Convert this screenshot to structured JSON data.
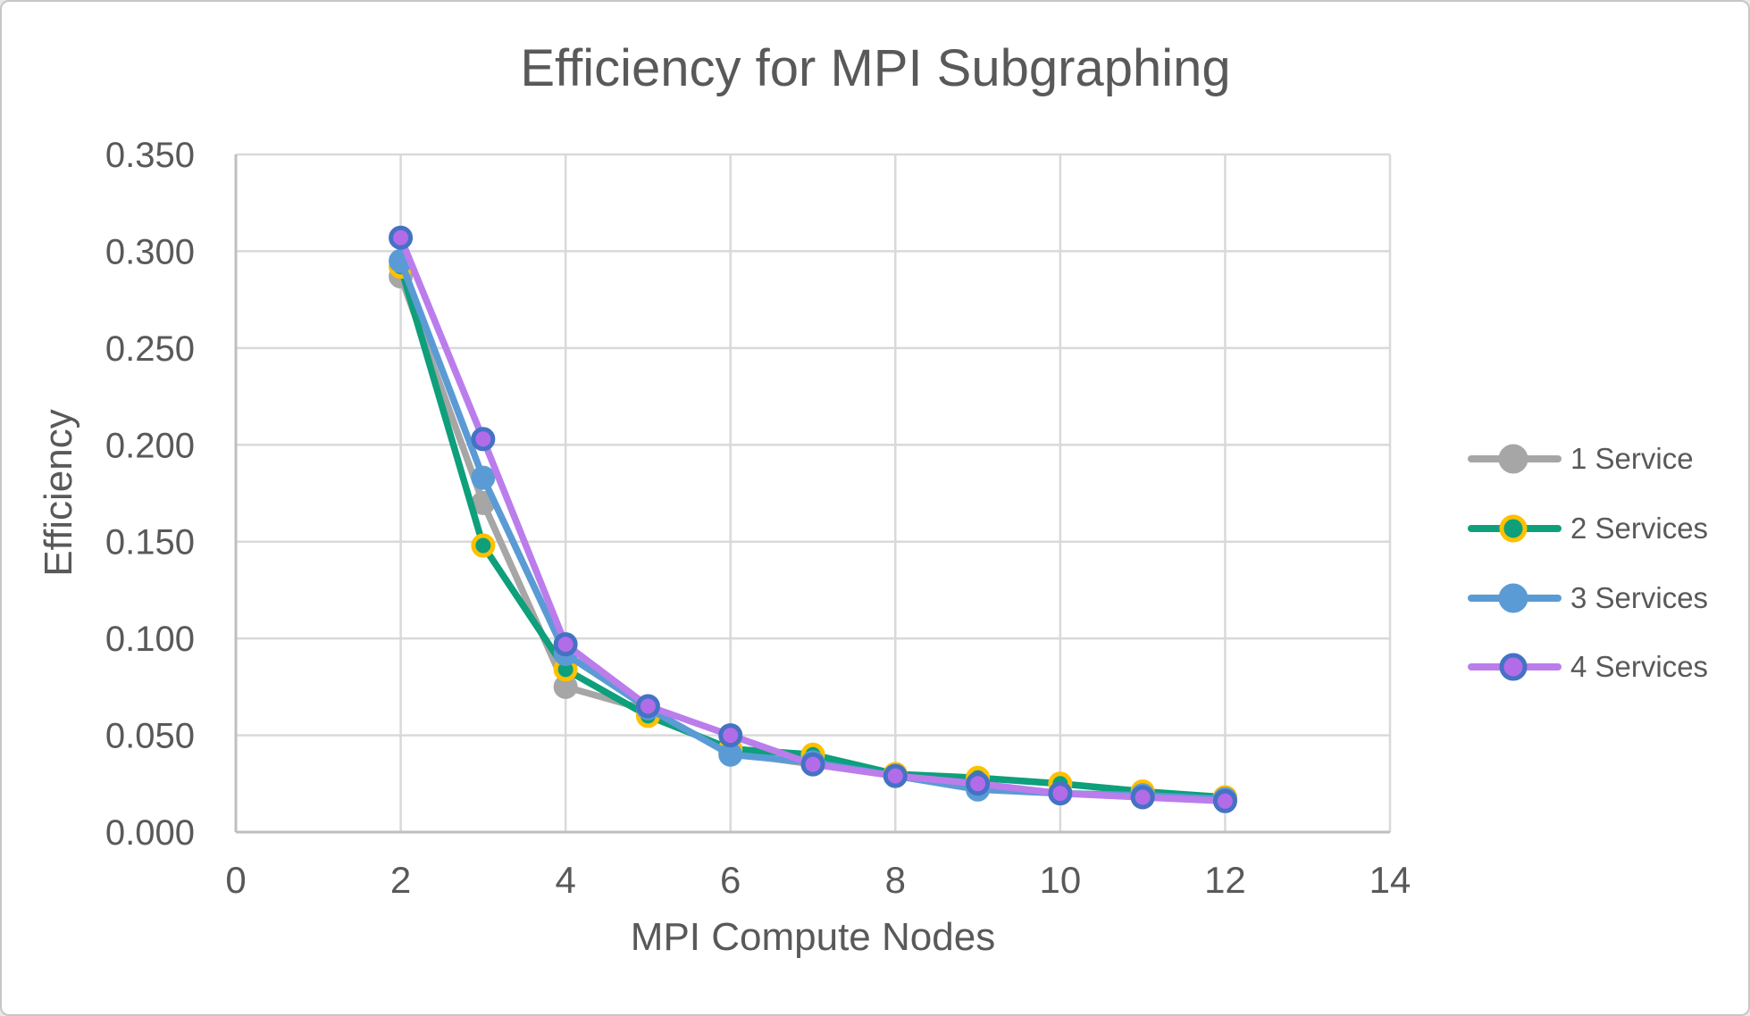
{
  "frame": {
    "background": "#ffffff",
    "border_color": "#c9c7c5"
  },
  "chart_data": {
    "type": "line",
    "title": "Efficiency for MPI Subgraphing",
    "xlabel": "MPI Compute Nodes",
    "ylabel": "Efficiency",
    "xlim": [
      0,
      14
    ],
    "ylim": [
      0,
      0.35
    ],
    "x_ticks": [
      0,
      2,
      4,
      6,
      8,
      10,
      12,
      14
    ],
    "y_ticks": [
      "0.000",
      "0.050",
      "0.100",
      "0.150",
      "0.200",
      "0.250",
      "0.300",
      "0.350"
    ],
    "grid": true,
    "legend_position": "right",
    "x": [
      2,
      3,
      4,
      5,
      6,
      7,
      8,
      9,
      10,
      11,
      12
    ],
    "series": [
      {
        "name": "1 Service",
        "line_color": "#a6a6a6",
        "marker_fill": "#a6a6a6",
        "marker_border": "#a6a6a6",
        "values": [
          0.287,
          0.17,
          0.075,
          0.063,
          0.041,
          0.035,
          0.03,
          0.024,
          0.02,
          0.019,
          0.017
        ]
      },
      {
        "name": "2 Services",
        "line_color": "#0e9f7b",
        "marker_fill": "#0e9f7b",
        "marker_border": "#ffc000",
        "values": [
          0.292,
          0.148,
          0.084,
          0.06,
          0.043,
          0.04,
          0.03,
          0.028,
          0.025,
          0.021,
          0.018
        ]
      },
      {
        "name": "3 Services",
        "line_color": "#5b9bd5",
        "marker_fill": "#5b9bd5",
        "marker_border": "#5b9bd5",
        "values": [
          0.295,
          0.183,
          0.092,
          0.064,
          0.04,
          0.036,
          0.029,
          0.022,
          0.02,
          0.019,
          0.017
        ]
      },
      {
        "name": "4 Services",
        "line_color": "#bb7dec",
        "marker_fill": "#b26ce8",
        "marker_border": "#4472c4",
        "values": [
          0.307,
          0.203,
          0.097,
          0.065,
          0.05,
          0.035,
          0.029,
          0.025,
          0.02,
          0.018,
          0.016
        ]
      }
    ],
    "text_color": "#595959",
    "grid_color": "#d9d9d9",
    "axis_color": "#bfbfbf"
  }
}
